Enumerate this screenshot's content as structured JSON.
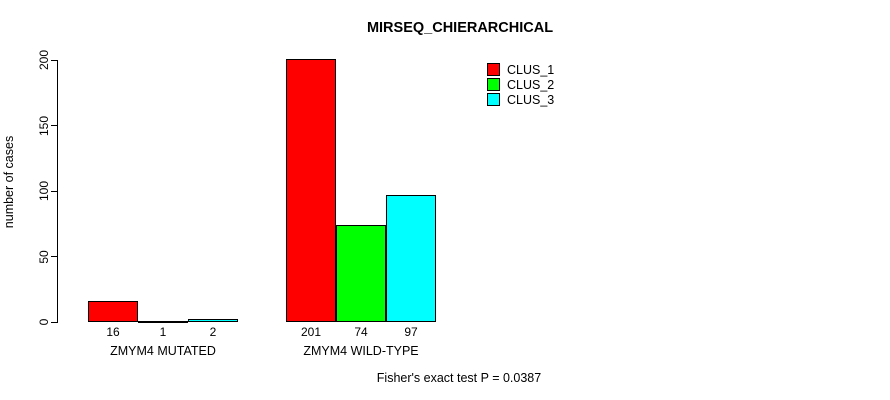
{
  "chart_data": {
    "type": "bar",
    "title": "MIRSEQ_CHIERARCHICAL",
    "ylabel": "number of cases",
    "ylim": [
      0,
      200
    ],
    "yticks": [
      "0",
      "50",
      "100",
      "150",
      "200"
    ],
    "categories": [
      "ZMYM4 MUTATED",
      "ZMYM4 WILD-TYPE"
    ],
    "series": [
      {
        "name": "CLUS_1",
        "color": "#ff0000",
        "values": [
          16,
          201
        ]
      },
      {
        "name": "CLUS_2",
        "color": "#00ff00",
        "values": [
          1,
          74
        ]
      },
      {
        "name": "CLUS_3",
        "color": "#00ffff",
        "values": [
          2,
          97
        ]
      }
    ],
    "bar_value_labels": [
      [
        "16",
        "1",
        "2"
      ],
      [
        "201",
        "74",
        "97"
      ]
    ],
    "footnote": "Fisher's exact test P = 0.0387",
    "legend_position": "top-right",
    "grid": false,
    "background_color": "#ffffff",
    "bar_border_color": "#000000",
    "text_color": "#000000"
  }
}
